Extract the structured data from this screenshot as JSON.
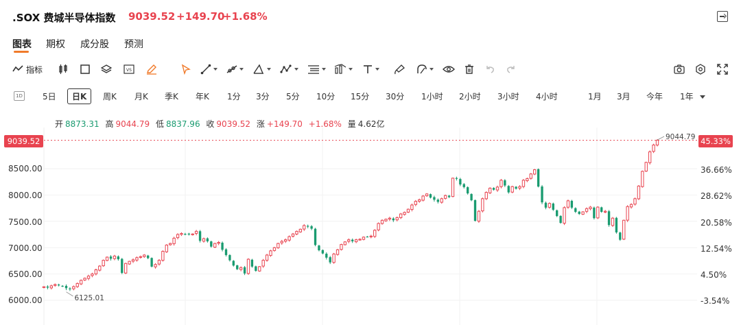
{
  "header": {
    "symbol": ".SOX 费城半导体指数",
    "price": "9039.52",
    "change": "+149.70",
    "change_pct": "+1.68%"
  },
  "tabs": [
    "图表",
    "期权",
    "成分股",
    "预测"
  ],
  "toolbar": {
    "indicator_label": "指标",
    "tools": [
      "candlestick-icon",
      "square-icon",
      "layers-icon",
      "vs-icon",
      "pen-icon",
      "cursor-icon",
      "line-icon",
      "ray-icon",
      "triangle-icon",
      "polyline-icon",
      "fib-icon",
      "pattern-icon",
      "text-icon",
      "brush-icon",
      "magnet-icon",
      "eye-icon",
      "trash-icon",
      "undo-icon",
      "redo-icon",
      "camera-icon",
      "settings-icon",
      "fullscreen-icon"
    ]
  },
  "periods": {
    "first_icon": "1D",
    "items": [
      "5日",
      "日K",
      "周K",
      "月K",
      "季K",
      "年K",
      "1分",
      "3分",
      "5分",
      "10分",
      "15分",
      "30分",
      "1小时",
      "2小时",
      "3小时",
      "4小时",
      "1月",
      "3月",
      "今年",
      "1年"
    ],
    "selected": "日K"
  },
  "ohlc": {
    "open_label": "开",
    "open": "8873.31",
    "high_label": "高",
    "high": "9044.79",
    "low_label": "低",
    "low": "8837.96",
    "close_label": "收",
    "close": "9039.52",
    "chg_label": "涨",
    "chg": "+149.70",
    "chg_pct": "+1.68%",
    "vol_label": "量",
    "vol": "4.62亿"
  },
  "price_axis": [
    "8500.00",
    "8000.00",
    "7500.00",
    "7000.00",
    "6500.00",
    "6000.00"
  ],
  "pct_axis": [
    "36.66%",
    "28.62%",
    "20.58%",
    "12.54%",
    "4.50%",
    "-3.54%"
  ],
  "last_price_tag": "9039.52",
  "last_pct_tag": "45.33%",
  "colors": {
    "up": "#e8434f",
    "down": "#1a9b70",
    "accent": "#f07a2a"
  },
  "chart_data": {
    "type": "candlestick",
    "ylim": [
      6000,
      9100
    ],
    "max_label": "9044.79",
    "min_label": "6125.01",
    "close": [
      6258,
      6242,
      6275,
      6300,
      6285,
      6270,
      6230,
      6210,
      6260,
      6320,
      6380,
      6420,
      6460,
      6500,
      6580,
      6650,
      6760,
      6820,
      6790,
      6840,
      6780,
      6520,
      6700,
      6740,
      6770,
      6810,
      6830,
      6860,
      6800,
      6640,
      6680,
      6760,
      6930,
      7050,
      7080,
      7180,
      7250,
      7270,
      7260,
      7250,
      7260,
      7310,
      7130,
      7170,
      7120,
      7020,
      7080,
      7100,
      6960,
      6860,
      6760,
      6660,
      6590,
      6620,
      6510,
      6780,
      6640,
      6560,
      6640,
      6760,
      6860,
      6940,
      7000,
      7080,
      7120,
      7150,
      7210,
      7260,
      7310,
      7350,
      7420,
      7400,
      7360,
      7050,
      6950,
      6890,
      6810,
      6720,
      6880,
      6960,
      7060,
      7110,
      7150,
      7120,
      7150,
      7160,
      7200,
      7210,
      7220,
      7330,
      7460,
      7520,
      7540,
      7560,
      7520,
      7570,
      7640,
      7670,
      7730,
      7810,
      7880,
      7910,
      7980,
      8020,
      7950,
      7910,
      7870,
      7930,
      7990,
      7960,
      8320,
      8310,
      8200,
      8150,
      8030,
      7900,
      7510,
      7690,
      7930,
      8050,
      8130,
      8100,
      8150,
      8280,
      8180,
      8050,
      8160,
      8120,
      8160,
      8280,
      8310,
      8400,
      8480,
      8160,
      7860,
      7760,
      7840,
      7720,
      7600,
      7470,
      7760,
      7890,
      7760,
      7680,
      7640,
      7680,
      7740,
      7770,
      7560,
      7770,
      7680,
      7690,
      7430,
      7560,
      7290,
      7150,
      7520,
      7780,
      7820,
      7930,
      8170,
      8450,
      8620,
      8820,
      8950,
      9039
    ]
  }
}
